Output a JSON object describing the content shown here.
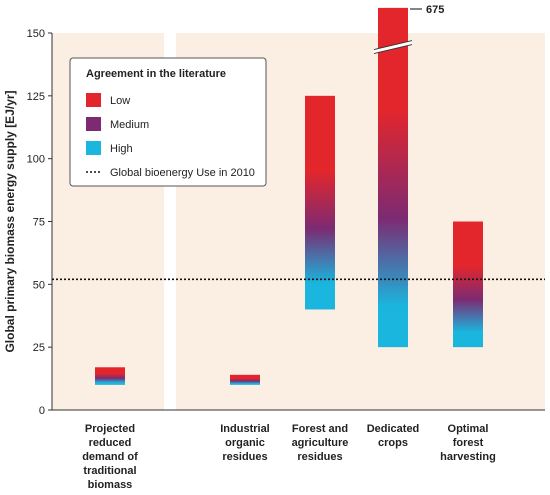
{
  "chart_data": {
    "type": "bar",
    "title": "",
    "ylabel": "Global primary biomass energy supply [EJ/yr]",
    "xlabel": "",
    "ylim": [
      0,
      150
    ],
    "yticks": [
      0,
      25,
      50,
      75,
      100,
      125,
      150
    ],
    "reference_line": {
      "value": 52,
      "label": "Global bioenergy Use in 2010",
      "style": "dotted"
    },
    "legend": {
      "title": "Agreement in the literature",
      "position": "top-left",
      "items": [
        {
          "label": "Low",
          "color": "#e3262c"
        },
        {
          "label": "Medium",
          "color": "#7d2a72"
        },
        {
          "label": "High",
          "color": "#1ab6de"
        }
      ]
    },
    "categories": [
      {
        "label": [
          "Projected",
          "reduced",
          "demand of",
          "traditional",
          "biomass"
        ],
        "low": 10,
        "high": 17
      },
      {
        "label": [
          "Industrial",
          "organic",
          "residues"
        ],
        "low": 10,
        "high": 14
      },
      {
        "label": [
          "Forest and",
          "agriculture",
          "residues"
        ],
        "low": 40,
        "high": 125
      },
      {
        "label": [
          "Dedicated",
          "crops"
        ],
        "low": 25,
        "high": 675,
        "axis_break": true,
        "break_label": "675"
      },
      {
        "label": [
          "Optimal",
          "forest",
          "harvesting"
        ],
        "low": 25,
        "high": 75
      }
    ],
    "colors": {
      "background": "#fbeee2",
      "gap": "#ffffff"
    }
  }
}
